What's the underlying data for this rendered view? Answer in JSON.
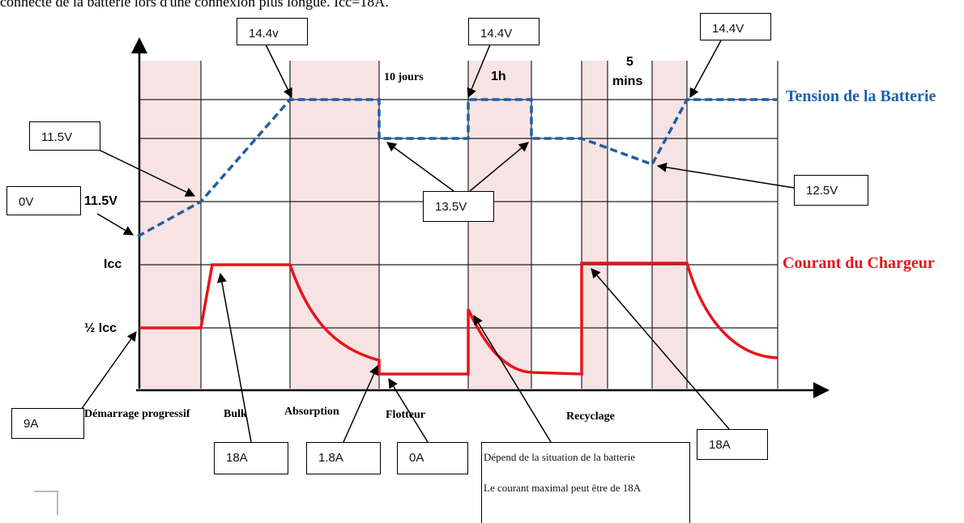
{
  "header_text": "connecté de la batterie lors d'une connexion plus longue. Icc=18A.",
  "legend": {
    "voltage": "Tension de la Batterie",
    "current": "Courant du Chargeur",
    "voltage_color": "#1f5fa8",
    "current_color": "#e8141b"
  },
  "y_axis": {
    "v_11_5": "11.5V",
    "icc": "Icc",
    "half_icc": "½ Icc"
  },
  "phases": {
    "soft_start": "Démarrage progressif",
    "bulk": "Bulk",
    "absorption": "Absorption",
    "float": "Flotteur",
    "recycling": "Recyclage"
  },
  "durations": {
    "ten_days": "10 jours",
    "one_hour": "1h",
    "five": "5",
    "mins": "mins"
  },
  "callouts": {
    "v_14_4_a": "14.4v",
    "v_14_4_b": "14.4V",
    "v_14_4_c": "14.4V",
    "v_11_5": "11.5V",
    "v_0": "0V",
    "v_13_5": "13.5V",
    "v_12_5": "12.5V",
    "i_9": "9A",
    "i_18_a": "18A",
    "i_1_8": "1.8A",
    "i_0": "0A",
    "i_18_b": "18A"
  },
  "note": {
    "line1": "Dépend de la situation de la batterie",
    "line2": "Le courant maximal peut être de 18A"
  }
}
